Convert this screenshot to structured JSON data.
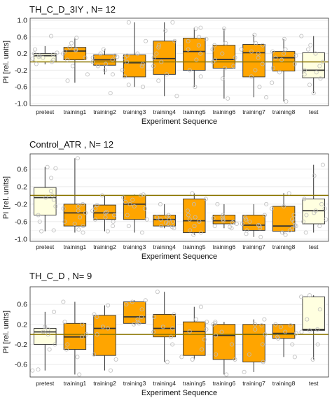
{
  "colors": {
    "training_fill": "#FFA500",
    "test_fill": "#FFFFE0",
    "box_stroke": "#333333",
    "reference_line": "#8B7500",
    "grid": "#EBEBEB",
    "jitter_point": "#BEBEBE"
  },
  "chart_data": [
    {
      "type": "box",
      "title": "TH_C_D_3IY , N= 12",
      "xlabel": "Experiment Sequence",
      "ylabel": "PI [rel. units]",
      "ylim": [
        -1.05,
        1.05
      ],
      "yticks": [
        -1.0,
        -0.6,
        -0.2,
        0.2,
        0.6,
        1.0
      ],
      "yticks_labels": [
        "-1.0",
        "-0.6",
        "-0.2",
        "0.2",
        "0.6",
        "1.0"
      ],
      "reference_line": 0.0,
      "grid": true,
      "categories": [
        "pretest",
        "training1",
        "training2",
        "training3",
        "training4",
        "training5",
        "training6",
        "training7",
        "training8",
        "test"
      ],
      "boxes": [
        {
          "low": -0.06,
          "q1": 0.0,
          "median": 0.15,
          "q3": 0.2,
          "high": 0.38,
          "kind": "test"
        },
        {
          "low": -0.5,
          "q1": 0.05,
          "median": 0.26,
          "q3": 0.35,
          "high": 0.58,
          "kind": "training"
        },
        {
          "low": -0.3,
          "q1": -0.08,
          "median": 0.05,
          "q3": 0.17,
          "high": 0.3,
          "kind": "training"
        },
        {
          "low": -0.6,
          "q1": -0.36,
          "median": -0.02,
          "q3": 0.17,
          "high": 0.95,
          "kind": "training"
        },
        {
          "low": -0.82,
          "q1": -0.3,
          "median": 0.08,
          "q3": 0.5,
          "high": 0.95,
          "kind": "training"
        },
        {
          "low": -0.6,
          "q1": -0.2,
          "median": 0.25,
          "q3": 0.57,
          "high": 0.82,
          "kind": "training"
        },
        {
          "low": -0.88,
          "q1": -0.15,
          "median": 0.06,
          "q3": 0.4,
          "high": 0.8,
          "kind": "training"
        },
        {
          "low": -0.85,
          "q1": -0.36,
          "median": 0.22,
          "q3": 0.42,
          "high": 0.65,
          "kind": "training"
        },
        {
          "low": -0.95,
          "q1": -0.22,
          "median": 0.1,
          "q3": 0.25,
          "high": 0.55,
          "kind": "training"
        },
        {
          "low": -0.75,
          "q1": -0.38,
          "median": -0.2,
          "q3": 0.22,
          "high": 0.62,
          "kind": "test"
        }
      ],
      "points": [
        [
          0.62,
          0.2,
          0.1,
          0.05,
          -0.05,
          0.18,
          0.3,
          0.22,
          0.15,
          0.0,
          0.08,
          0.12
        ],
        [
          0.58,
          0.45,
          0.35,
          0.3,
          0.25,
          0.2,
          0.1,
          0.05,
          -0.1,
          -0.3,
          -0.45,
          0.28
        ],
        [
          0.3,
          0.2,
          0.15,
          0.1,
          0.05,
          0.0,
          -0.05,
          -0.1,
          -0.2,
          -0.3,
          -0.75,
          0.12
        ],
        [
          0.95,
          0.5,
          0.2,
          0.1,
          0.0,
          -0.05,
          -0.1,
          -0.2,
          -0.35,
          -0.55,
          -0.6,
          0.15
        ],
        [
          0.95,
          0.75,
          0.5,
          0.35,
          0.2,
          0.1,
          0.0,
          -0.1,
          -0.3,
          -0.45,
          -0.82,
          0.4
        ],
        [
          0.82,
          0.8,
          0.6,
          0.55,
          0.4,
          0.3,
          0.2,
          0.05,
          -0.2,
          -0.35,
          -0.6,
          0.5
        ],
        [
          0.8,
          0.45,
          0.4,
          0.2,
          0.1,
          0.05,
          0.0,
          -0.1,
          -0.15,
          -0.4,
          -0.88,
          0.3
        ],
        [
          0.65,
          0.45,
          0.4,
          0.3,
          0.2,
          0.1,
          -0.05,
          -0.2,
          -0.35,
          -0.6,
          -0.85,
          0.25
        ],
        [
          0.55,
          0.3,
          0.25,
          0.2,
          0.15,
          0.05,
          -0.05,
          -0.15,
          -0.25,
          -0.5,
          -0.95,
          0.1
        ],
        [
          0.62,
          0.4,
          0.3,
          0.2,
          0.0,
          -0.1,
          -0.2,
          -0.25,
          -0.4,
          -0.55,
          -0.75,
          -0.3
        ]
      ]
    },
    {
      "type": "box",
      "title": "Control_ATR , N= 12",
      "xlabel": "Experiment Sequence",
      "ylabel": "PI [rel. units]",
      "ylim": [
        -1.05,
        0.95
      ],
      "yticks": [
        -1.0,
        -0.6,
        -0.2,
        0.2,
        0.6
      ],
      "yticks_labels": [
        "-1.0",
        "-0.6",
        "-0.2",
        "0.2",
        "0.6"
      ],
      "reference_line": 0.0,
      "grid": true,
      "categories": [
        "pretest",
        "training1",
        "training2",
        "training3",
        "training4",
        "training5",
        "training6",
        "training7",
        "training8",
        "test"
      ],
      "boxes": [
        {
          "low": -0.82,
          "q1": -0.45,
          "median": -0.05,
          "q3": 0.18,
          "high": 0.65,
          "kind": "test"
        },
        {
          "low": -0.85,
          "q1": -0.7,
          "median": -0.4,
          "q3": -0.2,
          "high": 0.85,
          "kind": "training"
        },
        {
          "low": -0.82,
          "q1": -0.55,
          "median": -0.4,
          "q3": -0.22,
          "high": 0.0,
          "kind": "training"
        },
        {
          "low": -0.85,
          "q1": -0.55,
          "median": -0.2,
          "q3": 0.0,
          "high": 0.02,
          "kind": "training"
        },
        {
          "low": -0.75,
          "q1": -0.7,
          "median": -0.55,
          "q3": -0.45,
          "high": -0.2,
          "kind": "training"
        },
        {
          "low": -0.9,
          "q1": -0.85,
          "median": -0.58,
          "q3": -0.08,
          "high": 0.05,
          "kind": "training"
        },
        {
          "low": -0.75,
          "q1": -0.65,
          "median": -0.58,
          "q3": -0.45,
          "high": -0.2,
          "kind": "training"
        },
        {
          "low": -0.95,
          "q1": -0.8,
          "median": -0.68,
          "q3": -0.45,
          "high": -0.2,
          "kind": "training"
        },
        {
          "low": -0.9,
          "q1": -0.82,
          "median": -0.7,
          "q3": -0.25,
          "high": 0.05,
          "kind": "training"
        },
        {
          "low": -0.85,
          "q1": -0.65,
          "median": -0.35,
          "q3": -0.08,
          "high": 0.7,
          "kind": "test"
        }
      ],
      "points": [
        [
          0.65,
          0.62,
          0.4,
          0.1,
          -0.05,
          -0.1,
          -0.25,
          -0.45,
          -0.6,
          -0.8,
          -0.82,
          0.0
        ],
        [
          0.85,
          -0.2,
          -0.25,
          -0.35,
          -0.4,
          -0.5,
          -0.6,
          -0.65,
          -0.7,
          -0.78,
          -0.85,
          -0.3
        ],
        [
          0.0,
          -0.22,
          -0.3,
          -0.35,
          -0.4,
          -0.45,
          -0.5,
          -0.55,
          -0.6,
          -0.7,
          -0.82,
          -0.38
        ],
        [
          0.02,
          0.0,
          -0.05,
          -0.1,
          -0.2,
          -0.25,
          -0.3,
          -0.45,
          -0.55,
          -0.7,
          -0.85,
          -0.15
        ],
        [
          -0.2,
          -0.45,
          -0.5,
          -0.55,
          -0.55,
          -0.6,
          -0.62,
          -0.65,
          -0.7,
          -0.72,
          -0.75,
          -0.48
        ],
        [
          0.05,
          -0.08,
          -0.2,
          -0.35,
          -0.5,
          -0.55,
          -0.6,
          -0.7,
          -0.8,
          -0.85,
          -0.9,
          -0.45
        ],
        [
          -0.2,
          -0.45,
          -0.5,
          -0.55,
          -0.58,
          -0.6,
          -0.62,
          -0.65,
          -0.7,
          -0.72,
          -0.75,
          -0.52
        ],
        [
          -0.2,
          -0.45,
          -0.5,
          -0.6,
          -0.65,
          -0.68,
          -0.7,
          -0.75,
          -0.8,
          -0.88,
          -0.95,
          -0.55
        ],
        [
          0.05,
          -0.25,
          -0.3,
          -0.45,
          -0.6,
          -0.68,
          -0.7,
          -0.75,
          -0.8,
          -0.85,
          -0.9,
          -0.55
        ],
        [
          0.7,
          0.45,
          -0.08,
          -0.2,
          -0.3,
          -0.35,
          -0.45,
          -0.55,
          -0.6,
          -0.7,
          -0.85,
          -0.4
        ]
      ]
    },
    {
      "type": "box",
      "title": "TH_C_D , N= 9",
      "xlabel": "Experiment Sequence",
      "ylabel": "PI [rel. units]",
      "ylim": [
        -0.85,
        0.95
      ],
      "yticks": [
        -0.6,
        -0.2,
        0.2,
        0.6
      ],
      "yticks_labels": [
        "-0.6",
        "-0.2",
        "0.2",
        "0.6"
      ],
      "reference_line": 0.0,
      "grid": true,
      "categories": [
        "pretest",
        "training1",
        "training2",
        "training3",
        "training4",
        "training5",
        "training6",
        "training7",
        "training8",
        "test"
      ],
      "boxes": [
        {
          "low": -0.72,
          "q1": -0.2,
          "median": 0.05,
          "q3": 0.12,
          "high": 0.45,
          "kind": "test"
        },
        {
          "low": -0.8,
          "q1": -0.3,
          "median": -0.05,
          "q3": 0.22,
          "high": 0.65,
          "kind": "training"
        },
        {
          "low": -0.72,
          "q1": -0.42,
          "median": 0.12,
          "q3": 0.38,
          "high": 0.58,
          "kind": "training"
        },
        {
          "low": 0.2,
          "q1": 0.22,
          "median": 0.35,
          "q3": 0.65,
          "high": 0.68,
          "kind": "training"
        },
        {
          "low": -0.55,
          "q1": -0.05,
          "median": 0.12,
          "q3": 0.4,
          "high": 0.85,
          "kind": "training"
        },
        {
          "low": -0.5,
          "q1": -0.42,
          "median": 0.06,
          "q3": 0.25,
          "high": 0.55,
          "kind": "training"
        },
        {
          "low": -0.8,
          "q1": -0.5,
          "median": -0.02,
          "q3": 0.2,
          "high": 0.25,
          "kind": "training"
        },
        {
          "low": -0.75,
          "q1": -0.55,
          "median": 0.0,
          "q3": 0.2,
          "high": 0.3,
          "kind": "training"
        },
        {
          "low": -0.45,
          "q1": -0.08,
          "median": 0.02,
          "q3": 0.2,
          "high": 0.2,
          "kind": "training"
        },
        {
          "low": -0.5,
          "q1": 0.08,
          "median": 0.1,
          "q3": 0.75,
          "high": 0.78,
          "kind": "test"
        }
      ],
      "points": [
        [
          0.45,
          0.15,
          0.1,
          0.05,
          0.0,
          -0.2,
          -0.3,
          -0.7,
          -0.72
        ],
        [
          0.65,
          0.25,
          0.2,
          0.0,
          -0.05,
          -0.2,
          -0.3,
          -0.45,
          -0.8
        ],
        [
          0.58,
          0.4,
          0.35,
          0.15,
          0.12,
          0.0,
          -0.4,
          -0.5,
          -0.72
        ],
        [
          0.68,
          0.65,
          0.6,
          0.5,
          0.35,
          0.3,
          0.25,
          0.22,
          0.2
        ],
        [
          0.85,
          0.4,
          0.35,
          0.15,
          0.12,
          0.05,
          -0.05,
          -0.2,
          -0.55
        ],
        [
          0.55,
          0.3,
          0.25,
          0.1,
          0.06,
          -0.1,
          -0.3,
          -0.45,
          -0.5
        ],
        [
          0.25,
          0.22,
          0.2,
          0.05,
          -0.02,
          -0.2,
          -0.4,
          -0.5,
          -0.8
        ],
        [
          0.3,
          0.2,
          0.18,
          0.1,
          0.0,
          -0.2,
          -0.4,
          -0.55,
          -0.75
        ],
        [
          0.2,
          0.18,
          0.15,
          0.05,
          0.02,
          -0.05,
          -0.08,
          -0.2,
          -0.45
        ],
        [
          0.78,
          0.75,
          0.5,
          0.3,
          0.1,
          0.08,
          0.05,
          -0.2,
          -0.5
        ]
      ]
    }
  ]
}
